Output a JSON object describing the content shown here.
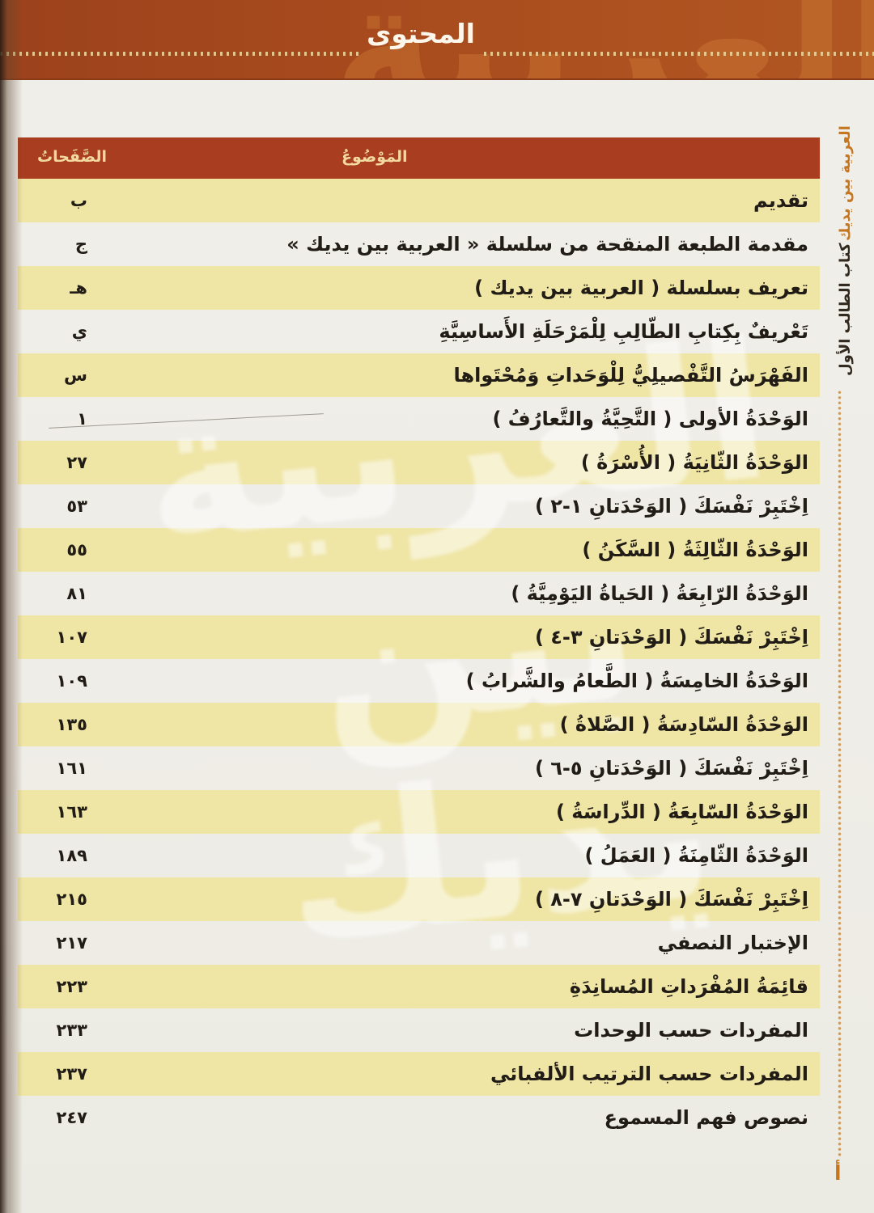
{
  "header": {
    "title": "المحتوى"
  },
  "decor": {
    "watermark_text": "العربية بين يديك",
    "band_calligraphy_text": "العربية"
  },
  "sidebar": {
    "series_title": "العربية بين يديك",
    "book_title": "كتاب الطالب الأول"
  },
  "footer": {
    "page_letter": "أ"
  },
  "toc": {
    "pages_header": "الصَّفَحاتُ",
    "topic_header": "المَوْضُوعُ",
    "rows": [
      {
        "topic": "تقديم",
        "page": "ب"
      },
      {
        "topic": "مقدمة الطبعة المنقحة من سلسلة « العربية بين يديك »",
        "page": "ج"
      },
      {
        "topic": "تعريف بسلسلة ( العربية بين يديك )",
        "page": "هـ"
      },
      {
        "topic": "تَعْريفٌ بِكِتابِ الطّالِبِ لِلْمَرْحَلَةِ الأَساسِيَّةِ",
        "page": "ي"
      },
      {
        "topic": "الفَهْرَسُ التَّفْصيلِيُّ لِلْوَحَداتِ وَمُحْتَواها",
        "page": "س"
      },
      {
        "topic": "الوَحْدَةُ الأولى ( التَّحِيَّةُ والتَّعارُفُ )",
        "page": "١"
      },
      {
        "topic": "الوَحْدَةُ الثّانِيَةُ ( الأُسْرَةُ )",
        "page": "٢٧"
      },
      {
        "topic": "اِخْتَبِرْ نَفْسَكَ ( الوَحْدَتانِ ١-٢ )",
        "page": "٥٣"
      },
      {
        "topic": "الوَحْدَةُ الثّالِثَةُ ( السَّكَنُ )",
        "page": "٥٥"
      },
      {
        "topic": "الوَحْدَةُ الرّابِعَةُ ( الحَياةُ اليَوْمِيَّةُ )",
        "page": "٨١"
      },
      {
        "topic": "اِخْتَبِرْ نَفْسَكَ ( الوَحْدَتانِ ٣-٤ )",
        "page": "١٠٧"
      },
      {
        "topic": "الوَحْدَةُ الخامِسَةُ ( الطَّعامُ والشَّرابُ )",
        "page": "١٠٩"
      },
      {
        "topic": "الوَحْدَةُ السّادِسَةُ ( الصَّلاةُ )",
        "page": "١٣٥"
      },
      {
        "topic": "اِخْتَبِرْ نَفْسَكَ ( الوَحْدَتانِ ٥-٦ )",
        "page": "١٦١"
      },
      {
        "topic": "الوَحْدَةُ السّابِعَةُ ( الدِّراسَةُ )",
        "page": "١٦٣"
      },
      {
        "topic": "الوَحْدَةُ الثّامِنَةُ ( العَمَلُ )",
        "page": "١٨٩"
      },
      {
        "topic": "اِخْتَبِرْ نَفْسَكَ ( الوَحْدَتانِ ٧-٨ )",
        "page": "٢١٥"
      },
      {
        "topic": "الإختبار النصفي",
        "page": "٢١٧"
      },
      {
        "topic": "قائِمَةُ المُفْرَداتِ المُسانِدَةِ",
        "page": "٢٢٣"
      },
      {
        "topic": "المفردات حسب الوحدات",
        "page": "٢٣٣"
      },
      {
        "topic": "المفردات حسب الترتيب الألفبائي",
        "page": "٢٣٧"
      },
      {
        "topic": "نصوص فهم المسموع",
        "page": "٢٤٧"
      }
    ]
  },
  "colors": {
    "band_rust": "#a84b1e",
    "table_header_red": "#a93d1f",
    "stripe_yellow": "#efe5a5",
    "paper": "#f0eee8",
    "accent_gold": "#f3d9a0",
    "sidebar_orange": "#c5761f",
    "ink": "#211c15"
  }
}
